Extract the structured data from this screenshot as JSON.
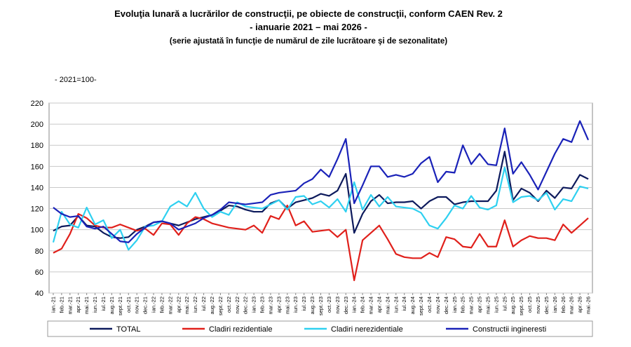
{
  "chart_data": {
    "type": "line",
    "title": "Evoluţia lunară a lucrărilor de construcţii, pe obiecte de construcţii, conform CAEN Rev. 2",
    "subtitle": "- ianuarie 2021 – mai 2026 -",
    "note": "(serie ajustată în funcţie de numărul de zile lucrătoare şi de sezonalitate)",
    "unit": "- 2021=100-",
    "categories": [
      "ian.-21",
      "feb.-21",
      "mar.-21",
      "apr.-21",
      "mai.-21",
      "iun.-21",
      "iul.-21",
      "aug.-21",
      "sept.-21",
      "oct.-21",
      "nov.-21",
      "dec.-21",
      "ian.-22",
      "feb.-22",
      "mar.-22",
      "apr.-22",
      "mai.-22",
      "iun.-22",
      "iul.-22",
      "aug.-22",
      "sept.-22",
      "oct.-22",
      "nov.-22",
      "dec.-22",
      "ian.-23",
      "feb.-23",
      "mar.-23",
      "apr.-23",
      "mai.-23",
      "iun.-23",
      "iul.-23",
      "aug.-23",
      "sept.-23",
      "oct.-23",
      "nov.-23",
      "dec.-23",
      "ian.-24",
      "feb.-24",
      "mar.-24",
      "apr.-24",
      "mai.-24",
      "iun.-24",
      "iul.-24",
      "aug.-24",
      "sept.-24",
      "oct.-24",
      "nov.-24",
      "dec.-24",
      "ian.-25",
      "feb.-25",
      "mar.-25",
      "apr.-25",
      "mai.-25",
      "iun.-25",
      "iul.-25",
      "aug.-25",
      "sept.-25",
      "oct.-25",
      "nov.-25",
      "dec.-25",
      "ian.-26",
      "feb.-26",
      "mar.-26",
      "apr.-26",
      "mai.-26"
    ],
    "series": [
      {
        "name": "TOTAL",
        "color": "#0d1a5c",
        "values": [
          99,
          103,
          104,
          113,
          104,
          103,
          97,
          93,
          92,
          93,
          100,
          103,
          107,
          108,
          106,
          104,
          107,
          110,
          112,
          114,
          118,
          123,
          122,
          119,
          117,
          117,
          125,
          128,
          120,
          126,
          128,
          130,
          134,
          132,
          137,
          153,
          97,
          115,
          127,
          133,
          125,
          126,
          126,
          127,
          120,
          127,
          131,
          131,
          124,
          126,
          127,
          127,
          127,
          137,
          174,
          128,
          139,
          135,
          127,
          137,
          130,
          140,
          139,
          152,
          148
        ]
      },
      {
        "name": "Cladiri rezidentiale",
        "color": "#e0201b",
        "values": [
          78,
          82,
          96,
          115,
          111,
          104,
          102,
          102,
          105,
          102,
          99,
          101,
          95,
          106,
          105,
          95,
          106,
          112,
          110,
          106,
          104,
          102,
          101,
          100,
          104,
          97,
          113,
          110,
          123,
          104,
          108,
          98,
          99,
          100,
          93,
          100,
          52,
          90,
          97,
          104,
          91,
          77,
          74,
          73,
          73,
          78,
          74,
          93,
          91,
          84,
          83,
          96,
          84,
          84,
          109,
          84,
          90,
          94,
          92,
          92,
          90,
          105,
          97,
          104,
          111
        ]
      },
      {
        "name": "Cladiri nerezidentiale",
        "color": "#2ed0f0",
        "values": [
          88,
          117,
          105,
          102,
          121,
          105,
          109,
          92,
          100,
          81,
          90,
          103,
          104,
          108,
          122,
          127,
          122,
          135,
          120,
          112,
          117,
          114,
          126,
          122,
          121,
          120,
          124,
          128,
          119,
          131,
          132,
          124,
          127,
          121,
          129,
          117,
          145,
          119,
          133,
          122,
          131,
          122,
          121,
          120,
          116,
          104,
          101,
          111,
          123,
          120,
          132,
          121,
          119,
          123,
          159,
          126,
          131,
          132,
          128,
          135,
          119,
          129,
          127,
          141,
          139
        ]
      },
      {
        "name": "Constructii ingineresti",
        "color": "#1a22b8",
        "values": [
          121,
          115,
          112,
          113,
          103,
          101,
          103,
          96,
          89,
          88,
          96,
          102,
          107,
          108,
          106,
          100,
          103,
          106,
          111,
          114,
          119,
          126,
          125,
          124,
          125,
          126,
          133,
          135,
          136,
          137,
          144,
          148,
          157,
          150,
          167,
          186,
          125,
          142,
          160,
          160,
          150,
          152,
          150,
          153,
          163,
          169,
          145,
          155,
          154,
          180,
          162,
          172,
          162,
          161,
          196,
          153,
          164,
          152,
          138,
          155,
          172,
          186,
          183,
          203,
          185
        ]
      }
    ],
    "ylim": [
      40,
      220
    ],
    "yticks": [
      40,
      60,
      80,
      100,
      120,
      140,
      160,
      180,
      200,
      220
    ],
    "grid": true
  }
}
